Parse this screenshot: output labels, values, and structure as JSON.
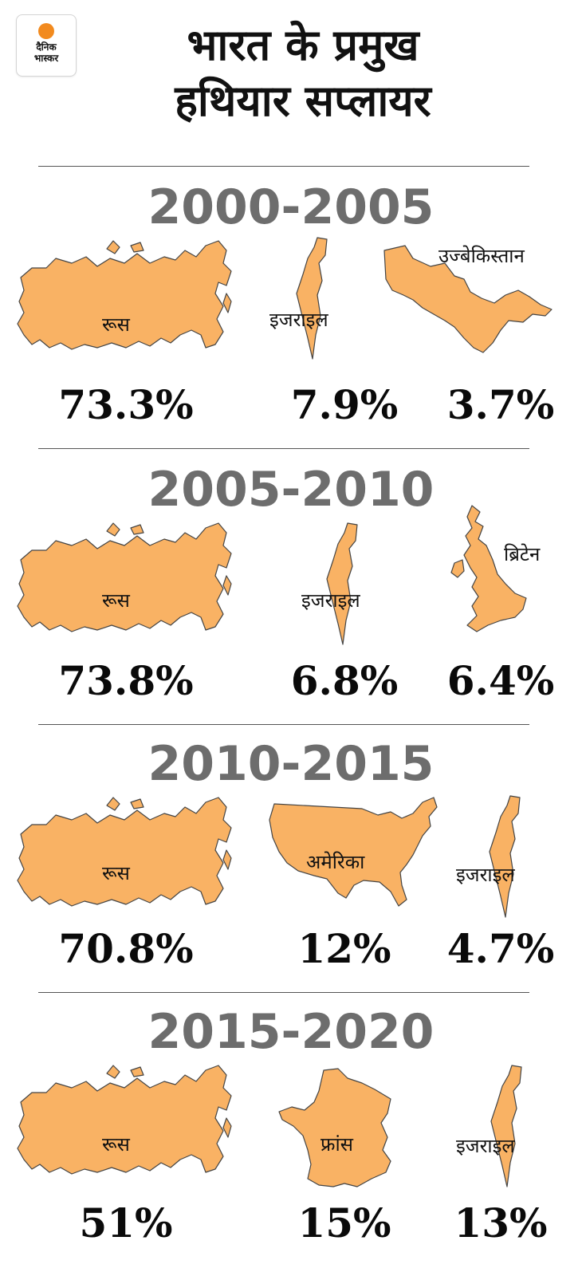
{
  "logo": {
    "line1": "दैनिक",
    "line2": "भास्कर"
  },
  "title": {
    "line1": "भारत के प्रमुख",
    "line2": "हथियार सप्लायर"
  },
  "sections": [
    {
      "period": "2000-2005",
      "countries": [
        {
          "name": "रूस",
          "map_icon": "russia-map",
          "percent": "73.3%",
          "share": 73.3
        },
        {
          "name": "इजराइल",
          "map_icon": "israel-map",
          "percent": "7.9%",
          "share": 7.9
        },
        {
          "name": "उज्बेकिस्तान",
          "map_icon": "uzbekistan-map",
          "percent": "3.7%",
          "share": 3.7
        }
      ]
    },
    {
      "period": "2005-2010",
      "countries": [
        {
          "name": "रूस",
          "map_icon": "russia-map",
          "percent": "73.8%",
          "share": 73.8
        },
        {
          "name": "इजराइल",
          "map_icon": "israel-map",
          "percent": "6.8%",
          "share": 6.8
        },
        {
          "name": "ब्रिटेन",
          "map_icon": "britain-map",
          "percent": "6.4%",
          "share": 6.4
        }
      ]
    },
    {
      "period": "2010-2015",
      "countries": [
        {
          "name": "रूस",
          "map_icon": "russia-map",
          "percent": "70.8%",
          "share": 70.8
        },
        {
          "name": "अमेरिका",
          "map_icon": "usa-map",
          "percent": "12%",
          "share": 12
        },
        {
          "name": "इजराइल",
          "map_icon": "israel-map",
          "percent": "4.7%",
          "share": 4.7
        }
      ]
    },
    {
      "period": "2015-2020",
      "countries": [
        {
          "name": "रूस",
          "map_icon": "russia-map",
          "percent": "51%",
          "share": 51
        },
        {
          "name": "फ्रांस",
          "map_icon": "france-map",
          "percent": "15%",
          "share": 15
        },
        {
          "name": "इजराइल",
          "map_icon": "israel-map",
          "percent": "13%",
          "share": 13
        }
      ]
    }
  ],
  "colors": {
    "map_fill": "#f9b264",
    "period_text": "#6d6d6d",
    "logo_dot": "#f28a1e"
  }
}
